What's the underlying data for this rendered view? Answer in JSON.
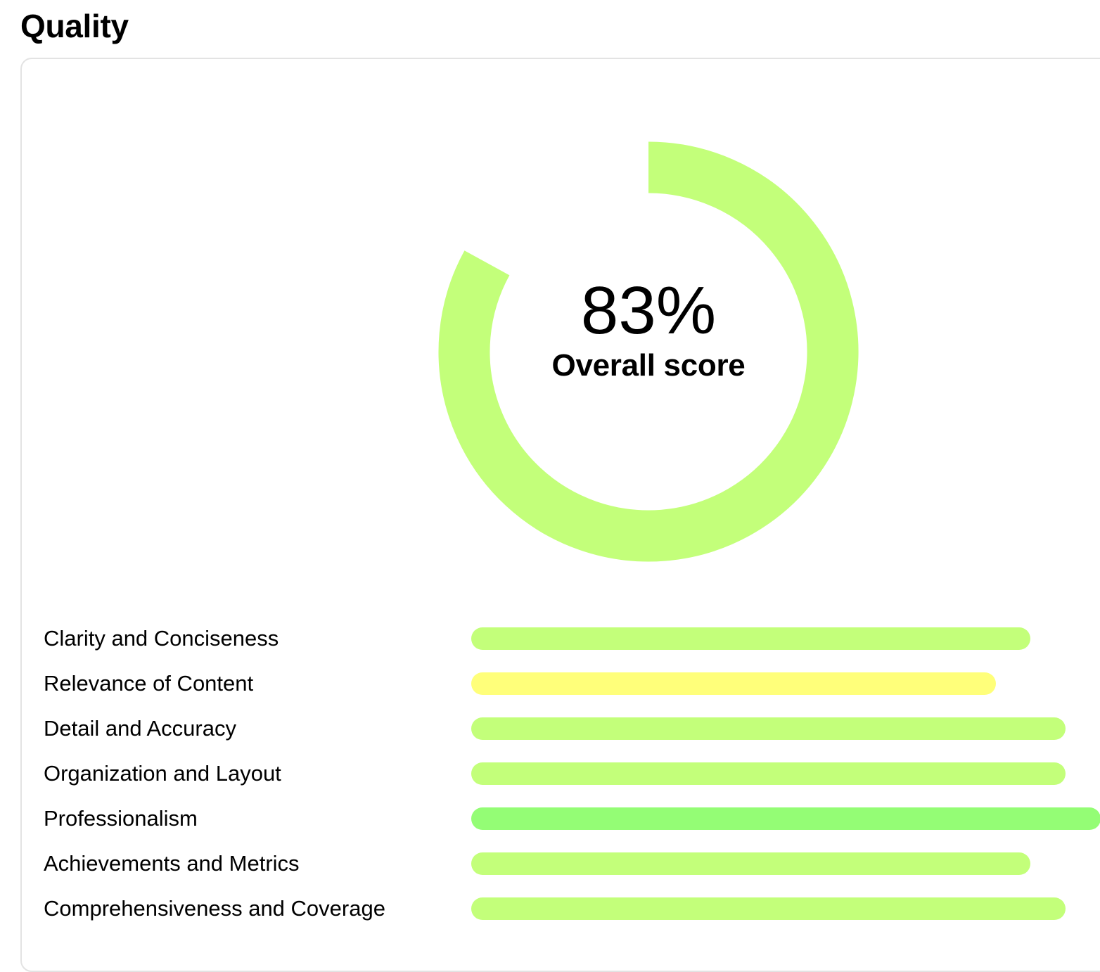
{
  "section": {
    "title": "Quality"
  },
  "overall": {
    "value_text": "83%",
    "label": "Overall score",
    "fraction": 0.83,
    "color": "#c3ff7a"
  },
  "metrics": [
    {
      "label": "Clarity and Conciseness",
      "score": 0.8,
      "color": "#c3ff7a"
    },
    {
      "label": "Relevance of Content",
      "score": 0.75,
      "color": "#ffff7a"
    },
    {
      "label": "Detail and Accuracy",
      "score": 0.85,
      "color": "#c3ff7a"
    },
    {
      "label": "Organization and Layout",
      "score": 0.85,
      "color": "#c3ff7a"
    },
    {
      "label": "Professionalism",
      "score": 0.9,
      "color": "#94fd75"
    },
    {
      "label": "Achievements and Metrics",
      "score": 0.8,
      "color": "#c3ff7a"
    },
    {
      "label": "Comprehensiveness and Coverage",
      "score": 0.85,
      "color": "#c3ff7a"
    }
  ]
}
